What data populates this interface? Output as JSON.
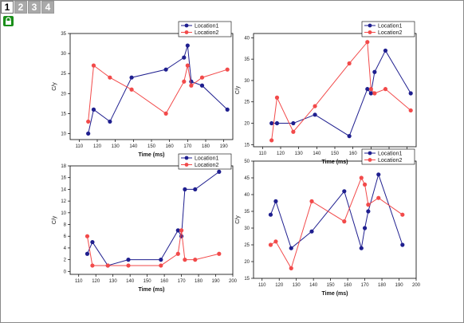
{
  "tabs": [
    {
      "label": "1",
      "active": true
    },
    {
      "label": "2",
      "active": false
    },
    {
      "label": "3",
      "active": false
    },
    {
      "label": "4",
      "active": false
    }
  ],
  "lock_icon": "lock-icon",
  "colors": {
    "location1": "#1f1f8f",
    "location2": "#f24a4a"
  },
  "chart_data": [
    {
      "type": "line",
      "xlabel": "Time (ms)",
      "ylabel": "C/y",
      "xlim": [
        105,
        195
      ],
      "ylim": [
        8.5,
        35
      ],
      "xticks": [
        110,
        120,
        130,
        140,
        150,
        160,
        170,
        180,
        190
      ],
      "yticks": [
        10,
        15,
        20,
        25,
        30,
        35
      ],
      "legend": "top-right",
      "series": [
        {
          "name": "Location1",
          "x": [
            115,
            118,
            127,
            139,
            158,
            168,
            170,
            172,
            178,
            192
          ],
          "y": [
            10,
            16,
            13,
            24,
            26,
            29,
            32,
            23,
            22,
            16
          ]
        },
        {
          "name": "Location2",
          "x": [
            115,
            118,
            127,
            139,
            158,
            168,
            170,
            172,
            178,
            192
          ],
          "y": [
            13,
            27,
            24,
            21,
            15,
            23,
            27,
            22,
            24,
            26
          ]
        }
      ]
    },
    {
      "type": "line",
      "xlabel": "Time (ms)",
      "ylabel": "C/y",
      "xlim": [
        105,
        195
      ],
      "ylim": [
        14.5,
        41
      ],
      "xticks": [
        110,
        120,
        130,
        140,
        150,
        160,
        170,
        180,
        190
      ],
      "yticks": [
        15,
        20,
        25,
        30,
        35,
        40
      ],
      "legend": "top-right",
      "series": [
        {
          "name": "Location1",
          "x": [
            115,
            118,
            127,
            139,
            158,
            168,
            170,
            172,
            178,
            192
          ],
          "y": [
            20,
            20,
            20,
            22,
            17,
            28,
            27,
            32,
            37,
            27
          ]
        },
        {
          "name": "Location2",
          "x": [
            115,
            118,
            127,
            139,
            158,
            168,
            170,
            172,
            178,
            192
          ],
          "y": [
            16,
            26,
            18,
            24,
            34,
            39,
            28,
            27,
            28,
            23
          ]
        }
      ]
    },
    {
      "type": "line",
      "xlabel": "Time (ms)",
      "ylabel": "C/y",
      "xlim": [
        105,
        200
      ],
      "ylim": [
        -0.5,
        18
      ],
      "xticks": [
        110,
        120,
        130,
        140,
        150,
        160,
        170,
        180,
        190,
        200
      ],
      "yticks": [
        0,
        2,
        4,
        6,
        8,
        10,
        12,
        14,
        16,
        18
      ],
      "legend": "top-right",
      "series": [
        {
          "name": "Location1",
          "x": [
            115,
            118,
            127,
            139,
            158,
            168,
            170,
            172,
            178,
            192
          ],
          "y": [
            3,
            5,
            1,
            2,
            2,
            7,
            6,
            14,
            14,
            17
          ]
        },
        {
          "name": "Location2",
          "x": [
            115,
            118,
            127,
            139,
            158,
            168,
            170,
            172,
            178,
            192
          ],
          "y": [
            6,
            1,
            1,
            1,
            1,
            3,
            7,
            2,
            2,
            3
          ]
        }
      ]
    },
    {
      "type": "line",
      "xlabel": "Time (ms)",
      "ylabel": "C/y",
      "xlim": [
        105,
        200
      ],
      "ylim": [
        15,
        50
      ],
      "xticks": [
        110,
        120,
        130,
        140,
        150,
        160,
        170,
        180,
        190,
        200
      ],
      "yticks": [
        15,
        20,
        25,
        30,
        35,
        40,
        45,
        50
      ],
      "legend": "top-right",
      "series": [
        {
          "name": "Location1",
          "x": [
            115,
            118,
            127,
            139,
            158,
            168,
            170,
            172,
            178,
            192
          ],
          "y": [
            34,
            38,
            24,
            29,
            41,
            24,
            30,
            35,
            46,
            25
          ]
        },
        {
          "name": "Location2",
          "x": [
            115,
            118,
            127,
            139,
            158,
            168,
            170,
            172,
            178,
            192
          ],
          "y": [
            25,
            26,
            18,
            38,
            32,
            45,
            43,
            37,
            39,
            34
          ]
        }
      ]
    }
  ]
}
